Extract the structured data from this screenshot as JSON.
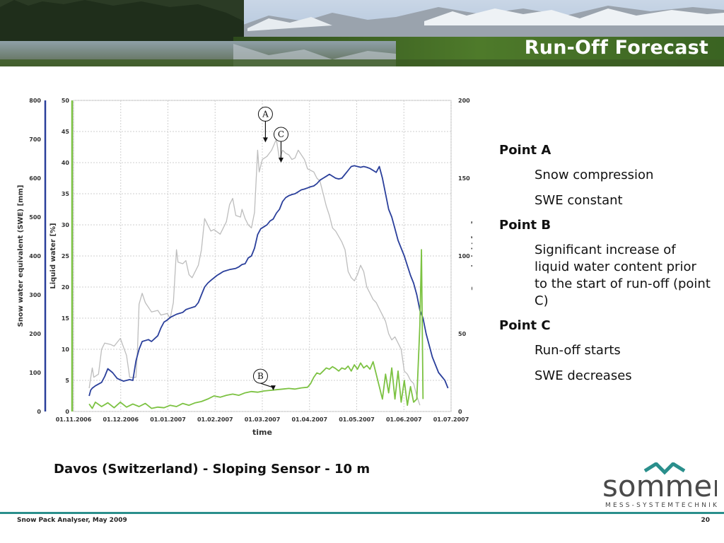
{
  "slide": {
    "title": "Run-Off Forecast",
    "caption": "Davos (Switzerland) - Sloping Sensor - 10 m",
    "footer_left": "Snow Pack Analyser, May 2009",
    "page_number": "20",
    "logo_text": "sommer",
    "logo_subtitle": "MESS-SYSTEMTECHNIK",
    "colors": {
      "accent": "#2a8f8c",
      "title": "#ffffff"
    }
  },
  "notes": [
    {
      "head": "Point A",
      "lines": [
        "Snow compression",
        "SWE constant"
      ]
    },
    {
      "head": "Point B",
      "lines": [
        "Significant increase of liquid water content prior to the start of run-off (point C)"
      ]
    },
    {
      "head": "Point C",
      "lines": [
        "Run-off starts",
        "SWE decreases"
      ]
    }
  ],
  "chart_data": {
    "type": "line",
    "xlabel": "time",
    "x_ticks": [
      "01.11.2006",
      "01.12.2006",
      "01.01.2007",
      "01.02.2007",
      "01.03.2007",
      "01.04.2007",
      "01.05.2007",
      "01.06.2007",
      "01.07.2007"
    ],
    "x_range_days": [
      0,
      242
    ],
    "grid": true,
    "axes": [
      {
        "id": "swe",
        "label": "Snow water equivalent (SWE) [mm]",
        "ticks": [
          0,
          100,
          200,
          300,
          400,
          500,
          600,
          700,
          800
        ],
        "range": [
          0,
          800
        ],
        "color": "#2a3f9b"
      },
      {
        "id": "lw",
        "label": "Liquid water [%]",
        "ticks": [
          0,
          5,
          10,
          15,
          20,
          25,
          30,
          35,
          40,
          45,
          50
        ],
        "range": [
          0,
          50
        ],
        "color": "#7cc242"
      },
      {
        "id": "hs",
        "label": "Snow height [cm]",
        "ticks": [
          0,
          50,
          100,
          150,
          200
        ],
        "range": [
          0,
          200
        ],
        "color": "#333333"
      }
    ],
    "series": [
      {
        "axis": "hs",
        "color": "#bdbdbd",
        "points": [
          [
            10,
            15
          ],
          [
            12,
            28
          ],
          [
            13,
            22
          ],
          [
            16,
            24
          ],
          [
            18,
            40
          ],
          [
            20,
            44
          ],
          [
            24,
            43
          ],
          [
            26,
            42
          ],
          [
            30,
            47
          ],
          [
            34,
            36
          ],
          [
            36,
            22
          ],
          [
            40,
            22
          ],
          [
            41,
            40
          ],
          [
            42,
            69
          ],
          [
            44,
            76
          ],
          [
            46,
            70
          ],
          [
            50,
            64
          ],
          [
            54,
            65
          ],
          [
            56,
            62
          ],
          [
            60,
            63
          ],
          [
            62,
            60
          ],
          [
            64,
            70
          ],
          [
            66,
            104
          ],
          [
            67,
            96
          ],
          [
            70,
            95
          ],
          [
            72,
            97
          ],
          [
            74,
            88
          ],
          [
            76,
            86
          ],
          [
            80,
            94
          ],
          [
            82,
            104
          ],
          [
            84,
            124
          ],
          [
            86,
            120
          ],
          [
            88,
            116
          ],
          [
            90,
            117
          ],
          [
            94,
            114
          ],
          [
            96,
            118
          ],
          [
            98,
            122
          ],
          [
            100,
            133
          ],
          [
            102,
            137
          ],
          [
            104,
            126
          ],
          [
            107,
            125
          ],
          [
            108,
            130
          ],
          [
            110,
            124
          ],
          [
            112,
            120
          ],
          [
            114,
            118
          ],
          [
            116,
            128
          ],
          [
            118,
            168
          ],
          [
            119,
            154
          ],
          [
            121,
            162
          ],
          [
            124,
            164
          ],
          [
            127,
            168
          ],
          [
            130,
            175
          ],
          [
            132,
            162
          ],
          [
            134,
            168
          ],
          [
            136,
            166
          ],
          [
            138,
            165
          ],
          [
            140,
            162
          ],
          [
            142,
            163
          ],
          [
            144,
            168
          ],
          [
            146,
            165
          ],
          [
            148,
            162
          ],
          [
            150,
            156
          ],
          [
            152,
            155
          ],
          [
            154,
            154
          ],
          [
            156,
            150
          ],
          [
            158,
            148
          ],
          [
            160,
            140
          ],
          [
            162,
            132
          ],
          [
            164,
            126
          ],
          [
            166,
            118
          ],
          [
            168,
            116
          ],
          [
            172,
            109
          ],
          [
            174,
            104
          ],
          [
            176,
            90
          ],
          [
            178,
            86
          ],
          [
            180,
            84
          ],
          [
            182,
            88
          ],
          [
            184,
            94
          ],
          [
            186,
            90
          ],
          [
            188,
            80
          ],
          [
            190,
            76
          ],
          [
            192,
            72
          ],
          [
            194,
            70
          ],
          [
            196,
            66
          ],
          [
            198,
            62
          ],
          [
            200,
            58
          ],
          [
            202,
            50
          ],
          [
            204,
            46
          ],
          [
            206,
            48
          ],
          [
            208,
            44
          ],
          [
            210,
            40
          ],
          [
            212,
            26
          ],
          [
            214,
            24
          ],
          [
            216,
            20
          ],
          [
            218,
            18
          ],
          [
            220,
            10
          ],
          [
            222,
            4
          ]
        ]
      },
      {
        "axis": "swe",
        "color": "#2a3f9b",
        "points": [
          [
            10,
            40
          ],
          [
            11,
            55
          ],
          [
            12,
            60
          ],
          [
            14,
            66
          ],
          [
            18,
            75
          ],
          [
            20,
            90
          ],
          [
            22,
            110
          ],
          [
            25,
            100
          ],
          [
            28,
            85
          ],
          [
            32,
            78
          ],
          [
            36,
            82
          ],
          [
            38,
            80
          ],
          [
            40,
            130
          ],
          [
            42,
            160
          ],
          [
            44,
            180
          ],
          [
            48,
            185
          ],
          [
            50,
            180
          ],
          [
            54,
            195
          ],
          [
            56,
            215
          ],
          [
            58,
            230
          ],
          [
            60,
            235
          ],
          [
            62,
            242
          ],
          [
            66,
            250
          ],
          [
            70,
            255
          ],
          [
            72,
            262
          ],
          [
            74,
            265
          ],
          [
            78,
            270
          ],
          [
            80,
            280
          ],
          [
            82,
            300
          ],
          [
            84,
            320
          ],
          [
            86,
            330
          ],
          [
            88,
            337
          ],
          [
            92,
            350
          ],
          [
            94,
            355
          ],
          [
            96,
            360
          ],
          [
            100,
            365
          ],
          [
            104,
            368
          ],
          [
            106,
            372
          ],
          [
            108,
            378
          ],
          [
            110,
            380
          ],
          [
            112,
            395
          ],
          [
            114,
            400
          ],
          [
            116,
            420
          ],
          [
            118,
            455
          ],
          [
            120,
            470
          ],
          [
            122,
            475
          ],
          [
            124,
            480
          ],
          [
            126,
            490
          ],
          [
            128,
            495
          ],
          [
            130,
            510
          ],
          [
            132,
            520
          ],
          [
            134,
            540
          ],
          [
            136,
            550
          ],
          [
            138,
            555
          ],
          [
            140,
            558
          ],
          [
            142,
            560
          ],
          [
            144,
            565
          ],
          [
            146,
            570
          ],
          [
            148,
            572
          ],
          [
            150,
            575
          ],
          [
            152,
            578
          ],
          [
            154,
            580
          ],
          [
            156,
            586
          ],
          [
            158,
            595
          ],
          [
            160,
            600
          ],
          [
            162,
            605
          ],
          [
            164,
            610
          ],
          [
            166,
            605
          ],
          [
            168,
            600
          ],
          [
            170,
            598
          ],
          [
            172,
            600
          ],
          [
            174,
            610
          ],
          [
            176,
            620
          ],
          [
            178,
            630
          ],
          [
            180,
            632
          ],
          [
            182,
            630
          ],
          [
            184,
            628
          ],
          [
            186,
            630
          ],
          [
            188,
            628
          ],
          [
            190,
            625
          ],
          [
            192,
            620
          ],
          [
            194,
            615
          ],
          [
            196,
            630
          ],
          [
            198,
            600
          ],
          [
            200,
            560
          ],
          [
            202,
            520
          ],
          [
            204,
            500
          ],
          [
            206,
            470
          ],
          [
            208,
            440
          ],
          [
            210,
            420
          ],
          [
            212,
            400
          ],
          [
            214,
            375
          ],
          [
            216,
            350
          ],
          [
            218,
            330
          ],
          [
            220,
            300
          ],
          [
            222,
            260
          ],
          [
            224,
            240
          ],
          [
            226,
            200
          ],
          [
            228,
            170
          ],
          [
            230,
            140
          ],
          [
            232,
            120
          ],
          [
            234,
            100
          ],
          [
            236,
            90
          ],
          [
            238,
            80
          ],
          [
            240,
            60
          ]
        ]
      },
      {
        "axis": "lw",
        "color": "#7cc242",
        "points": [
          [
            10,
            1.2
          ],
          [
            12,
            0.5
          ],
          [
            14,
            1.5
          ],
          [
            18,
            0.8
          ],
          [
            22,
            1.4
          ],
          [
            26,
            0.6
          ],
          [
            30,
            1.5
          ],
          [
            34,
            0.7
          ],
          [
            38,
            1.2
          ],
          [
            42,
            0.8
          ],
          [
            46,
            1.3
          ],
          [
            50,
            0.5
          ],
          [
            54,
            0.7
          ],
          [
            58,
            0.6
          ],
          [
            62,
            1.0
          ],
          [
            66,
            0.8
          ],
          [
            70,
            1.3
          ],
          [
            74,
            1.0
          ],
          [
            78,
            1.4
          ],
          [
            82,
            1.6
          ],
          [
            86,
            2.0
          ],
          [
            90,
            2.5
          ],
          [
            94,
            2.3
          ],
          [
            98,
            2.6
          ],
          [
            102,
            2.8
          ],
          [
            106,
            2.6
          ],
          [
            110,
            3.0
          ],
          [
            114,
            3.2
          ],
          [
            118,
            3.1
          ],
          [
            122,
            3.3
          ],
          [
            126,
            3.4
          ],
          [
            130,
            3.5
          ],
          [
            134,
            3.6
          ],
          [
            138,
            3.7
          ],
          [
            142,
            3.6
          ],
          [
            146,
            3.8
          ],
          [
            150,
            3.9
          ],
          [
            152,
            4.5
          ],
          [
            154,
            5.5
          ],
          [
            156,
            6.2
          ],
          [
            158,
            6.0
          ],
          [
            160,
            6.5
          ],
          [
            162,
            7.0
          ],
          [
            164,
            6.8
          ],
          [
            166,
            7.2
          ],
          [
            168,
            6.9
          ],
          [
            170,
            6.5
          ],
          [
            172,
            7.0
          ],
          [
            174,
            6.8
          ],
          [
            176,
            7.3
          ],
          [
            178,
            6.5
          ],
          [
            180,
            7.5
          ],
          [
            182,
            6.8
          ],
          [
            184,
            7.8
          ],
          [
            186,
            7.0
          ],
          [
            188,
            7.4
          ],
          [
            190,
            6.8
          ],
          [
            192,
            8.0
          ],
          [
            194,
            6.0
          ],
          [
            196,
            4.0
          ],
          [
            198,
            2.0
          ],
          [
            200,
            6.0
          ],
          [
            202,
            3.0
          ],
          [
            204,
            7.0
          ],
          [
            206,
            2.0
          ],
          [
            208,
            6.5
          ],
          [
            210,
            1.5
          ],
          [
            212,
            5.0
          ],
          [
            214,
            1.0
          ],
          [
            216,
            4.0
          ],
          [
            218,
            1.5
          ],
          [
            220,
            2.0
          ],
          [
            222,
            14.0
          ],
          [
            223,
            26.0
          ],
          [
            224,
            2.0
          ]
        ]
      }
    ],
    "annotations": [
      {
        "label": "A",
        "x": 123,
        "axis": "hs",
        "y": 173
      },
      {
        "label": "C",
        "x": 133,
        "axis": "hs",
        "y": 160
      },
      {
        "label": "B",
        "x": 128,
        "axis": "lw",
        "y": 3.4
      }
    ]
  }
}
